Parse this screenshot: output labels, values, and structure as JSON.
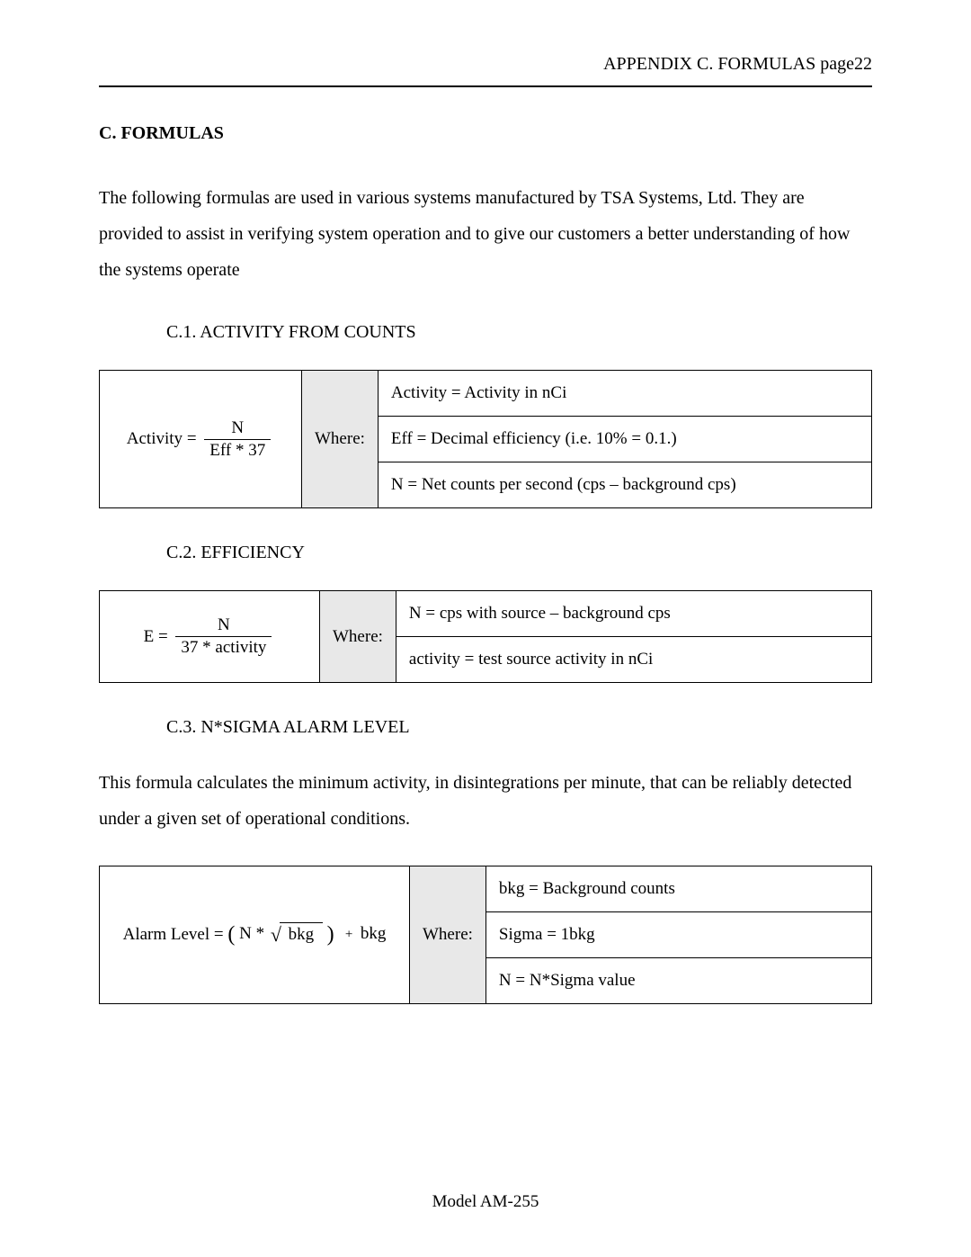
{
  "header": {
    "text": "APPENDIX C.  FORMULAS page22"
  },
  "section": {
    "title": "C. FORMULAS",
    "intro": "The following formulas are used in various systems manufactured by TSA Systems, Ltd.  They are provided to assist in verifying system operation and to give our customers a better understanding of how the systems operate"
  },
  "sub1": {
    "label": "C.1.  ACTIVITY FROM COUNTS",
    "formula_lhs": "Activity",
    "formula_num": "N",
    "formula_den": "Eff * 37",
    "where": "Where:",
    "defs": [
      "Activity = Activity in nCi",
      "Eff = Decimal efficiency (i.e.  10% = 0.1.)",
      "N = Net counts per second (cps – background cps)"
    ]
  },
  "sub2": {
    "label": "C.2.  EFFICIENCY",
    "formula_lhs": "E",
    "formula_num": "N",
    "formula_den": "37 * activity",
    "where": "Where:",
    "defs": [
      "N = cps with source – background cps",
      "activity = test source activity in nCi"
    ]
  },
  "sub3": {
    "label": "C.3.  N*SIGMA ALARM LEVEL",
    "body": "This formula calculates the minimum activity, in disintegrations per minute, that can be reliably detected under a given set of operational conditions.",
    "formula_lhs": "Alarm  Level",
    "formula_sqrt_coef": "N *",
    "formula_sqrt_arg": "bkg",
    "formula_tail": "bkg",
    "where": "Where:",
    "defs": [
      "bkg = Background counts",
      "Sigma = 1bkg",
      "N = N*Sigma value"
    ]
  },
  "footer": {
    "text": "Model AM-255"
  }
}
